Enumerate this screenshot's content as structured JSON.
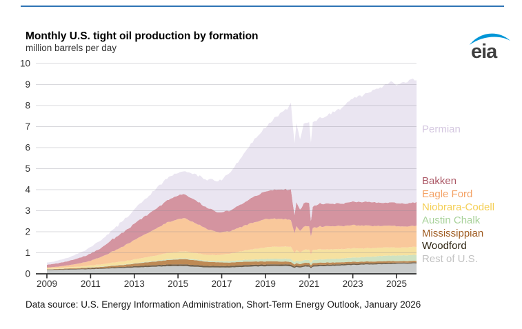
{
  "header": {
    "title": "Monthly U.S. tight oil production by formation",
    "units": "million barrels per day",
    "logo_text": "eia"
  },
  "footer": {
    "data_source": "Data source: U.S. Energy Information Administration, Short-Term Energy Outlook, January 2026"
  },
  "colors": {
    "accent_rule": "#2E74B5",
    "logo_swoosh": "#0096D7",
    "logo_text": "#3F3F3F",
    "gridline": "#8A8A96",
    "axis": "#2B2B2B",
    "tick_label": "#333333",
    "background": "#FFFFFF"
  },
  "chart_data": {
    "type": "area",
    "stacked": true,
    "title": "Monthly U.S. tight oil production by formation",
    "ylabel": "million barrels per day",
    "xlim": [
      2009,
      2025.92
    ],
    "ylim": [
      0,
      10
    ],
    "grid": "horizontal",
    "legend_position": "right",
    "x_tick_labels": [
      "2009",
      "2011",
      "2013",
      "2015",
      "2017",
      "2019",
      "2021",
      "2023",
      "2025"
    ],
    "x_ticks": [
      2009,
      2011,
      2013,
      2015,
      2017,
      2019,
      2021,
      2023,
      2025
    ],
    "y_tick_labels": [
      "0",
      "1",
      "2",
      "3",
      "4",
      "5",
      "6",
      "7",
      "8",
      "9",
      "10"
    ],
    "y_ticks": [
      0,
      1,
      2,
      3,
      4,
      5,
      6,
      7,
      8,
      9,
      10
    ],
    "x": [
      2009.0,
      2009.5,
      2010.0,
      2010.5,
      2011.0,
      2011.5,
      2012.0,
      2012.5,
      2013.0,
      2013.5,
      2014.0,
      2014.5,
      2015.0,
      2015.25,
      2015.75,
      2016.25,
      2016.75,
      2017.0,
      2017.5,
      2018.0,
      2018.5,
      2019.0,
      2019.5,
      2020.0,
      2020.17,
      2020.33,
      2020.42,
      2020.58,
      2020.75,
      2021.0,
      2021.08,
      2021.17,
      2021.25,
      2021.5,
      2022.0,
      2022.5,
      2023.0,
      2023.5,
      2024.0,
      2024.5,
      2024.75,
      2025.0,
      2025.25,
      2025.5,
      2025.75,
      2025.92
    ],
    "series_order_note": "bottom of stack first",
    "series": [
      {
        "name": "Rest of U.S.",
        "fill": "#C8CBCB",
        "label_color": "#C2C2C2",
        "jitter": 0.012,
        "values": [
          0.18,
          0.19,
          0.2,
          0.21,
          0.22,
          0.24,
          0.26,
          0.28,
          0.3,
          0.32,
          0.34,
          0.36,
          0.37,
          0.37,
          0.34,
          0.31,
          0.3,
          0.3,
          0.31,
          0.33,
          0.35,
          0.36,
          0.37,
          0.37,
          0.36,
          0.28,
          0.33,
          0.3,
          0.34,
          0.35,
          0.27,
          0.34,
          0.35,
          0.36,
          0.38,
          0.4,
          0.42,
          0.44,
          0.45,
          0.46,
          0.47,
          0.47,
          0.48,
          0.48,
          0.49,
          0.5
        ]
      },
      {
        "name": "Woodford",
        "fill": "#6E5F4B",
        "label_color": "#2E2512",
        "jitter": 0.004,
        "values": [
          0.02,
          0.02,
          0.03,
          0.03,
          0.04,
          0.04,
          0.05,
          0.05,
          0.06,
          0.07,
          0.07,
          0.08,
          0.08,
          0.08,
          0.08,
          0.07,
          0.07,
          0.07,
          0.07,
          0.08,
          0.08,
          0.08,
          0.08,
          0.08,
          0.08,
          0.06,
          0.07,
          0.06,
          0.07,
          0.07,
          0.05,
          0.07,
          0.07,
          0.07,
          0.06,
          0.06,
          0.06,
          0.06,
          0.06,
          0.06,
          0.06,
          0.05,
          0.05,
          0.05,
          0.05,
          0.05
        ]
      },
      {
        "name": "Mississippian",
        "fill": "#BE8A55",
        "label_color": "#9E5B20",
        "jitter": 0.006,
        "values": [
          0.02,
          0.02,
          0.03,
          0.03,
          0.04,
          0.05,
          0.07,
          0.09,
          0.12,
          0.15,
          0.18,
          0.21,
          0.24,
          0.25,
          0.23,
          0.2,
          0.18,
          0.17,
          0.16,
          0.16,
          0.15,
          0.15,
          0.14,
          0.13,
          0.13,
          0.1,
          0.11,
          0.1,
          0.11,
          0.11,
          0.08,
          0.1,
          0.1,
          0.1,
          0.1,
          0.09,
          0.09,
          0.08,
          0.08,
          0.08,
          0.08,
          0.07,
          0.07,
          0.07,
          0.07,
          0.07
        ]
      },
      {
        "name": "Austin Chalk",
        "fill": "#CFE2C2",
        "label_color": "#A8D29A",
        "jitter": 0.006,
        "values": [
          0.01,
          0.01,
          0.01,
          0.01,
          0.02,
          0.02,
          0.02,
          0.02,
          0.02,
          0.03,
          0.03,
          0.04,
          0.04,
          0.04,
          0.04,
          0.05,
          0.05,
          0.06,
          0.07,
          0.09,
          0.1,
          0.12,
          0.13,
          0.14,
          0.14,
          0.11,
          0.13,
          0.12,
          0.13,
          0.14,
          0.11,
          0.14,
          0.14,
          0.15,
          0.17,
          0.18,
          0.2,
          0.21,
          0.24,
          0.26,
          0.26,
          0.27,
          0.27,
          0.28,
          0.28,
          0.28
        ]
      },
      {
        "name": "Niobrara-Codell",
        "fill": "#F6E1A0",
        "label_color": "#F4CF55",
        "jitter": 0.015,
        "values": [
          0.03,
          0.04,
          0.05,
          0.06,
          0.08,
          0.1,
          0.13,
          0.15,
          0.18,
          0.21,
          0.25,
          0.29,
          0.32,
          0.33,
          0.31,
          0.28,
          0.29,
          0.31,
          0.37,
          0.44,
          0.5,
          0.55,
          0.57,
          0.58,
          0.58,
          0.42,
          0.5,
          0.44,
          0.49,
          0.5,
          0.38,
          0.48,
          0.48,
          0.48,
          0.46,
          0.45,
          0.44,
          0.42,
          0.4,
          0.39,
          0.39,
          0.38,
          0.38,
          0.38,
          0.38,
          0.38
        ]
      },
      {
        "name": "Eagle Ford",
        "fill": "#F9C89B",
        "label_color": "#F4A265",
        "jitter": 0.02,
        "values": [
          0.04,
          0.06,
          0.09,
          0.15,
          0.22,
          0.36,
          0.52,
          0.72,
          0.92,
          1.1,
          1.28,
          1.45,
          1.55,
          1.58,
          1.45,
          1.25,
          1.1,
          1.06,
          1.08,
          1.18,
          1.28,
          1.34,
          1.33,
          1.3,
          1.28,
          0.95,
          1.15,
          1.02,
          1.1,
          1.1,
          0.85,
          1.05,
          1.06,
          1.08,
          1.1,
          1.1,
          1.1,
          1.08,
          1.05,
          1.03,
          1.03,
          1.02,
          1.01,
          1.0,
          1.0,
          1.0
        ]
      },
      {
        "name": "Bakken",
        "fill": "#D494A0",
        "label_color": "#AB5765",
        "jitter": 0.025,
        "values": [
          0.13,
          0.16,
          0.2,
          0.26,
          0.34,
          0.44,
          0.58,
          0.68,
          0.78,
          0.86,
          0.95,
          1.05,
          1.13,
          1.16,
          1.1,
          1.0,
          0.96,
          0.95,
          1.0,
          1.1,
          1.22,
          1.32,
          1.38,
          1.42,
          1.45,
          0.85,
          1.15,
          1.0,
          1.1,
          1.12,
          0.72,
          1.0,
          1.05,
          1.08,
          1.06,
          1.08,
          1.1,
          1.12,
          1.12,
          1.1,
          1.1,
          1.1,
          1.1,
          1.1,
          1.1,
          1.12
        ]
      },
      {
        "name": "Permian",
        "fill": "#EAE5F1",
        "label_color": "#D4C7E0",
        "jitter": 0.05,
        "values": [
          0.1,
          0.13,
          0.17,
          0.22,
          0.3,
          0.37,
          0.45,
          0.55,
          0.65,
          0.8,
          0.95,
          1.05,
          1.1,
          1.12,
          1.22,
          1.32,
          1.45,
          1.55,
          1.9,
          2.3,
          2.7,
          3.05,
          3.45,
          3.85,
          4.15,
          3.35,
          3.75,
          3.36,
          3.76,
          3.86,
          3.74,
          4.02,
          4.0,
          4.05,
          4.3,
          4.55,
          4.9,
          5.1,
          5.35,
          5.6,
          5.76,
          5.59,
          5.72,
          5.82,
          5.85,
          5.82
        ]
      }
    ]
  }
}
